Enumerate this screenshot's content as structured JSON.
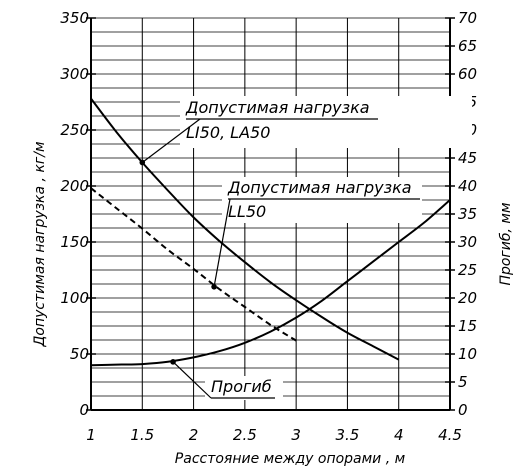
{
  "chart_data": {
    "type": "line",
    "xlabel": "Расстояние между опорами , м",
    "ylabel_left": "Допустимая нагрузка , кг/м",
    "ylabel_right": "Прогиб, мм",
    "xlim": [
      1,
      4.5
    ],
    "ylim_left": [
      0,
      350
    ],
    "ylim_right": [
      0,
      70
    ],
    "x_ticks": [
      1,
      1.5,
      2,
      2.5,
      3,
      3.5,
      4,
      4.5
    ],
    "x_tick_labels": [
      "1",
      "1.5",
      "2",
      "2.5",
      "3",
      "3.5",
      "4",
      "4.5"
    ],
    "y_left_ticks": [
      0,
      50,
      100,
      150,
      200,
      250,
      300,
      350
    ],
    "y_left_tick_labels": [
      "0",
      "50",
      "100",
      "150",
      "200",
      "250",
      "300",
      "350"
    ],
    "y_right_ticks": [
      0,
      5,
      10,
      15,
      20,
      25,
      30,
      35,
      40,
      45,
      50,
      55,
      60,
      65,
      70
    ],
    "y_right_tick_labels": [
      "0",
      "5",
      "10",
      "15",
      "20",
      "25",
      "30",
      "35",
      "40",
      "45",
      "50",
      "55",
      "60",
      "65",
      "70"
    ],
    "grid": true,
    "series": [
      {
        "axis": "left",
        "style": "solid",
        "x": [
          1,
          1.25,
          1.5,
          1.75,
          2,
          2.25,
          2.5,
          2.75,
          3,
          3.25,
          3.5,
          3.75,
          4
        ],
        "values": [
          278,
          248,
          221,
          196,
          172,
          151,
          132,
          114,
          98,
          83,
          69,
          57,
          45
        ]
      },
      {
        "axis": "left",
        "style": "dashed",
        "x": [
          1,
          1.25,
          1.5,
          1.75,
          2,
          2.25,
          2.5,
          2.75,
          3
        ],
        "values": [
          198,
          180,
          162,
          143,
          126,
          108,
          92,
          76,
          62
        ]
      },
      {
        "axis": "right",
        "style": "solid",
        "x": [
          1,
          1.25,
          1.5,
          1.75,
          2,
          2.25,
          2.5,
          2.75,
          3,
          3.25,
          3.5,
          3.75,
          4,
          4.25,
          4.5
        ],
        "values": [
          8,
          8.1,
          8.2,
          8.6,
          9.4,
          10.5,
          12,
          14,
          16.5,
          19.5,
          23,
          26.5,
          30,
          33.5,
          37.5
        ]
      }
    ],
    "annotations": [
      {
        "lines": [
          "Допустимая нагрузка",
          "LI50, LA50"
        ],
        "target_x": 1.5,
        "target_y": 221,
        "axis": "left"
      },
      {
        "lines": [
          "Допустимая нагрузка",
          "LL50"
        ],
        "target_x": 2.2,
        "target_y": 110,
        "axis": "left"
      },
      {
        "lines": [
          "Прогиб"
        ],
        "target_x": 1.8,
        "target_y": 8.6,
        "axis": "right"
      }
    ]
  }
}
